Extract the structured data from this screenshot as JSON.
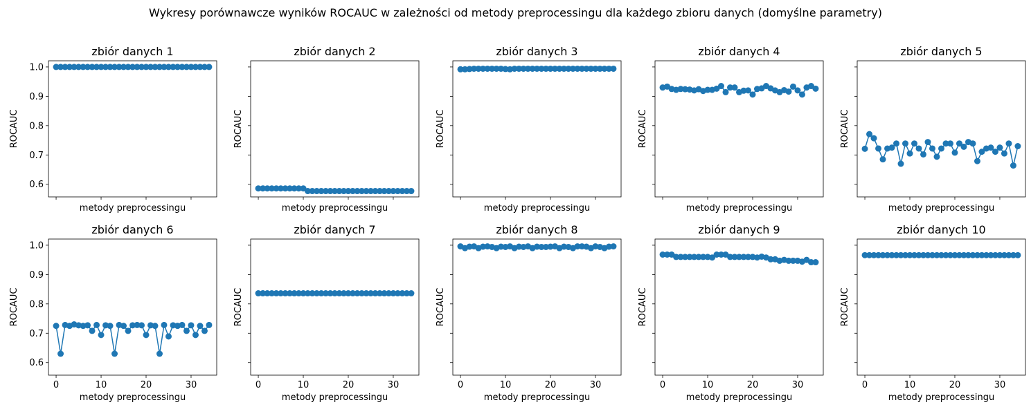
{
  "suptitle": "Wykresy porównawcze wyników ROCAUC w zależności od metody preprocessingu dla każdego zbioru danych (domyślne parametry)",
  "chart_data": {
    "type": "line",
    "xlabel": "metody preprocessingu",
    "ylabel": "ROCAUC",
    "xlim": [
      -1.7,
      35.7
    ],
    "ylim": [
      0.557,
      1.021
    ],
    "xticks": [
      0,
      10,
      20,
      30
    ],
    "yticks": [
      0.6,
      0.7,
      0.8,
      0.9,
      1.0
    ],
    "marker": "o",
    "color": "#1f77b4",
    "shared_axes": true,
    "grid": false,
    "layout": {
      "rows": 2,
      "cols": 5
    },
    "panels": [
      {
        "title": "zbiór danych 1",
        "x": [
          0,
          1,
          2,
          3,
          4,
          5,
          6,
          7,
          8,
          9,
          10,
          11,
          12,
          13,
          14,
          15,
          16,
          17,
          18,
          19,
          20,
          21,
          22,
          23,
          24,
          25,
          26,
          27,
          28,
          29,
          30,
          31,
          32,
          33,
          34
        ],
        "y": [
          1.0,
          1.0,
          1.0,
          1.0,
          1.0,
          1.0,
          1.0,
          1.0,
          1.0,
          1.0,
          1.0,
          1.0,
          1.0,
          1.0,
          1.0,
          1.0,
          1.0,
          1.0,
          1.0,
          1.0,
          1.0,
          1.0,
          1.0,
          1.0,
          1.0,
          1.0,
          1.0,
          1.0,
          1.0,
          1.0,
          1.0,
          1.0,
          1.0,
          1.0,
          1.0
        ]
      },
      {
        "title": "zbiór danych 2",
        "x": [
          0,
          1,
          2,
          3,
          4,
          5,
          6,
          7,
          8,
          9,
          10,
          11,
          12,
          13,
          14,
          15,
          16,
          17,
          18,
          19,
          20,
          21,
          22,
          23,
          24,
          25,
          26,
          27,
          28,
          29,
          30,
          31,
          32,
          33,
          34
        ],
        "y": [
          0.586,
          0.586,
          0.586,
          0.586,
          0.586,
          0.586,
          0.586,
          0.586,
          0.586,
          0.586,
          0.586,
          0.577,
          0.577,
          0.577,
          0.577,
          0.577,
          0.577,
          0.577,
          0.577,
          0.577,
          0.577,
          0.577,
          0.577,
          0.577,
          0.577,
          0.577,
          0.577,
          0.577,
          0.577,
          0.577,
          0.577,
          0.577,
          0.577,
          0.577,
          0.577
        ]
      },
      {
        "title": "zbiór danych 3",
        "x": [
          0,
          1,
          2,
          3,
          4,
          5,
          6,
          7,
          8,
          9,
          10,
          11,
          12,
          13,
          14,
          15,
          16,
          17,
          18,
          19,
          20,
          21,
          22,
          23,
          24,
          25,
          26,
          27,
          28,
          29,
          30,
          31,
          32,
          33,
          34
        ],
        "y": [
          0.992,
          0.992,
          0.993,
          0.994,
          0.994,
          0.994,
          0.994,
          0.994,
          0.994,
          0.994,
          0.993,
          0.992,
          0.994,
          0.994,
          0.994,
          0.994,
          0.994,
          0.994,
          0.994,
          0.994,
          0.994,
          0.994,
          0.994,
          0.994,
          0.994,
          0.994,
          0.994,
          0.994,
          0.994,
          0.994,
          0.994,
          0.994,
          0.994,
          0.994,
          0.994
        ]
      },
      {
        "title": "zbiór danych 4",
        "x": [
          0,
          1,
          2,
          3,
          4,
          5,
          6,
          7,
          8,
          9,
          10,
          11,
          12,
          13,
          14,
          15,
          16,
          17,
          18,
          19,
          20,
          21,
          22,
          23,
          24,
          25,
          26,
          27,
          28,
          29,
          30,
          31,
          32,
          33,
          34
        ],
        "y": [
          0.93,
          0.933,
          0.925,
          0.922,
          0.925,
          0.924,
          0.923,
          0.92,
          0.924,
          0.918,
          0.922,
          0.922,
          0.926,
          0.935,
          0.914,
          0.93,
          0.93,
          0.914,
          0.919,
          0.92,
          0.906,
          0.925,
          0.927,
          0.935,
          0.927,
          0.92,
          0.914,
          0.921,
          0.916,
          0.933,
          0.92,
          0.906,
          0.93,
          0.935,
          0.926
        ]
      },
      {
        "title": "zbiór danych 5",
        "x": [
          0,
          1,
          2,
          3,
          4,
          5,
          6,
          7,
          8,
          9,
          10,
          11,
          12,
          13,
          14,
          15,
          16,
          17,
          18,
          19,
          20,
          21,
          22,
          23,
          24,
          25,
          26,
          27,
          28,
          29,
          30,
          31,
          32,
          33,
          34
        ],
        "y": [
          0.721,
          0.771,
          0.757,
          0.722,
          0.685,
          0.722,
          0.725,
          0.739,
          0.67,
          0.739,
          0.705,
          0.739,
          0.722,
          0.702,
          0.744,
          0.722,
          0.694,
          0.722,
          0.739,
          0.739,
          0.708,
          0.739,
          0.728,
          0.744,
          0.739,
          0.679,
          0.711,
          0.722,
          0.725,
          0.711,
          0.725,
          0.705,
          0.739,
          0.664,
          0.73
        ]
      },
      {
        "title": "zbiór danych 6",
        "x": [
          0,
          1,
          2,
          3,
          4,
          5,
          6,
          7,
          8,
          9,
          10,
          11,
          12,
          13,
          14,
          15,
          16,
          17,
          18,
          19,
          20,
          21,
          22,
          23,
          24,
          25,
          26,
          27,
          28,
          29,
          30,
          31,
          32,
          33,
          34
        ],
        "y": [
          0.725,
          0.63,
          0.728,
          0.725,
          0.73,
          0.727,
          0.725,
          0.727,
          0.708,
          0.728,
          0.694,
          0.727,
          0.725,
          0.63,
          0.728,
          0.725,
          0.708,
          0.727,
          0.728,
          0.727,
          0.694,
          0.727,
          0.725,
          0.63,
          0.728,
          0.689,
          0.727,
          0.725,
          0.728,
          0.708,
          0.727,
          0.694,
          0.725,
          0.708,
          0.728
        ]
      },
      {
        "title": "zbiór danych 7",
        "x": [
          0,
          1,
          2,
          3,
          4,
          5,
          6,
          7,
          8,
          9,
          10,
          11,
          12,
          13,
          14,
          15,
          16,
          17,
          18,
          19,
          20,
          21,
          22,
          23,
          24,
          25,
          26,
          27,
          28,
          29,
          30,
          31,
          32,
          33,
          34
        ],
        "y": [
          0.836,
          0.836,
          0.836,
          0.836,
          0.836,
          0.836,
          0.836,
          0.836,
          0.836,
          0.836,
          0.836,
          0.836,
          0.836,
          0.836,
          0.836,
          0.836,
          0.836,
          0.836,
          0.836,
          0.836,
          0.836,
          0.836,
          0.836,
          0.836,
          0.836,
          0.836,
          0.836,
          0.836,
          0.836,
          0.836,
          0.836,
          0.836,
          0.836,
          0.836,
          0.836
        ]
      },
      {
        "title": "zbiór danych 8",
        "x": [
          0,
          1,
          2,
          3,
          4,
          5,
          6,
          7,
          8,
          9,
          10,
          11,
          12,
          13,
          14,
          15,
          16,
          17,
          18,
          19,
          20,
          21,
          22,
          23,
          24,
          25,
          26,
          27,
          28,
          29,
          30,
          31,
          32,
          33,
          34
        ],
        "y": [
          0.996,
          0.99,
          0.995,
          0.996,
          0.99,
          0.995,
          0.996,
          0.994,
          0.99,
          0.995,
          0.994,
          0.996,
          0.99,
          0.995,
          0.994,
          0.996,
          0.99,
          0.995,
          0.994,
          0.994,
          0.995,
          0.996,
          0.99,
          0.995,
          0.994,
          0.99,
          0.996,
          0.996,
          0.995,
          0.99,
          0.996,
          0.994,
          0.99,
          0.995,
          0.996
        ]
      },
      {
        "title": "zbiór danych 9",
        "x": [
          0,
          1,
          2,
          3,
          4,
          5,
          6,
          7,
          8,
          9,
          10,
          11,
          12,
          13,
          14,
          15,
          16,
          17,
          18,
          19,
          20,
          21,
          22,
          23,
          24,
          25,
          26,
          27,
          28,
          29,
          30,
          31,
          32,
          33,
          34
        ],
        "y": [
          0.968,
          0.968,
          0.968,
          0.96,
          0.96,
          0.96,
          0.96,
          0.96,
          0.96,
          0.96,
          0.96,
          0.958,
          0.968,
          0.968,
          0.968,
          0.96,
          0.96,
          0.96,
          0.96,
          0.96,
          0.96,
          0.958,
          0.961,
          0.958,
          0.952,
          0.952,
          0.947,
          0.95,
          0.947,
          0.947,
          0.947,
          0.944,
          0.95,
          0.942,
          0.942
        ]
      },
      {
        "title": "zbiór danych 10",
        "x": [
          0,
          1,
          2,
          3,
          4,
          5,
          6,
          7,
          8,
          9,
          10,
          11,
          12,
          13,
          14,
          15,
          16,
          17,
          18,
          19,
          20,
          21,
          22,
          23,
          24,
          25,
          26,
          27,
          28,
          29,
          30,
          31,
          32,
          33,
          34
        ],
        "y": [
          0.966,
          0.966,
          0.966,
          0.966,
          0.966,
          0.966,
          0.966,
          0.966,
          0.966,
          0.966,
          0.966,
          0.966,
          0.966,
          0.966,
          0.966,
          0.966,
          0.966,
          0.966,
          0.966,
          0.966,
          0.966,
          0.966,
          0.966,
          0.966,
          0.966,
          0.966,
          0.966,
          0.966,
          0.966,
          0.966,
          0.966,
          0.966,
          0.966,
          0.966,
          0.966
        ]
      }
    ]
  }
}
